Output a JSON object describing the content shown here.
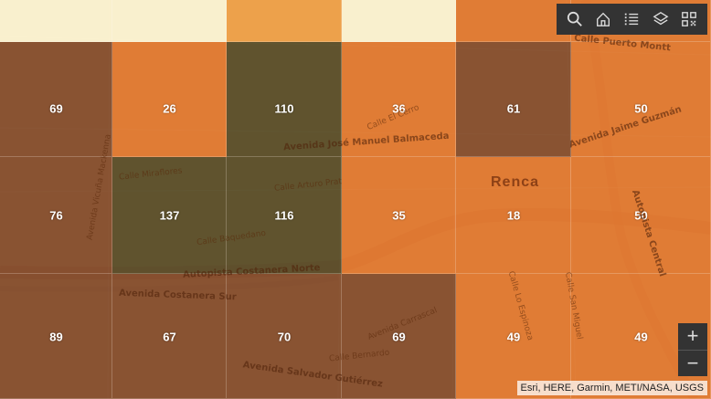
{
  "map": {
    "place_name": "Renca",
    "streets": [
      "Calle Puerto Montt",
      "Avenida José Manuel Balmaceda",
      "Avenida Jaime Guzmán",
      "Calle El Cerro",
      "Calle Miraflores",
      "Calle Arturo Prat",
      "Calle Baquedano",
      "Autopista Costanera Norte",
      "Avenida Costanera Sur",
      "Autopista Central",
      "Calle Lo Espinoza",
      "Avenida Salvador Gutiérrez",
      "Avenida Vicuña Mackenna",
      "Avenida Carrascal",
      "Calle San Miguel",
      "Calle Bernardo"
    ],
    "colors": {
      "very_high": "#4a4a2c",
      "high": "#7a4a30",
      "medium": "#e07a34",
      "low": "#f0a64e",
      "very_low": "#fbf6d6"
    },
    "cells": [
      {
        "value": "",
        "class": "very_low"
      },
      {
        "value": "",
        "class": "very_low"
      },
      {
        "value": "",
        "class": "low"
      },
      {
        "value": "",
        "class": "very_low"
      },
      {
        "value": "",
        "class": "medium"
      },
      {
        "value": "",
        "class": "medium"
      },
      {
        "value": "69",
        "class": "high"
      },
      {
        "value": "26",
        "class": "medium"
      },
      {
        "value": "110",
        "class": "very_high"
      },
      {
        "value": "36",
        "class": "medium"
      },
      {
        "value": "61",
        "class": "high"
      },
      {
        "value": "50",
        "class": "medium"
      },
      {
        "value": "76",
        "class": "high"
      },
      {
        "value": "137",
        "class": "very_high"
      },
      {
        "value": "116",
        "class": "very_high"
      },
      {
        "value": "35",
        "class": "medium"
      },
      {
        "value": "18",
        "class": "medium"
      },
      {
        "value": "50",
        "class": "medium"
      },
      {
        "value": "89",
        "class": "high"
      },
      {
        "value": "67",
        "class": "high"
      },
      {
        "value": "70",
        "class": "high"
      },
      {
        "value": "69",
        "class": "high"
      },
      {
        "value": "49",
        "class": "medium"
      },
      {
        "value": "49",
        "class": "medium"
      }
    ]
  },
  "toolbar": {
    "tools": [
      {
        "name": "search-icon"
      },
      {
        "name": "home-icon"
      },
      {
        "name": "legend-icon"
      },
      {
        "name": "layers-icon"
      },
      {
        "name": "qr-code-icon"
      }
    ]
  },
  "zoom": {
    "in_label": "+",
    "out_label": "−"
  },
  "attribution": "Esri, HERE, Garmin, METI/NASA, USGS"
}
